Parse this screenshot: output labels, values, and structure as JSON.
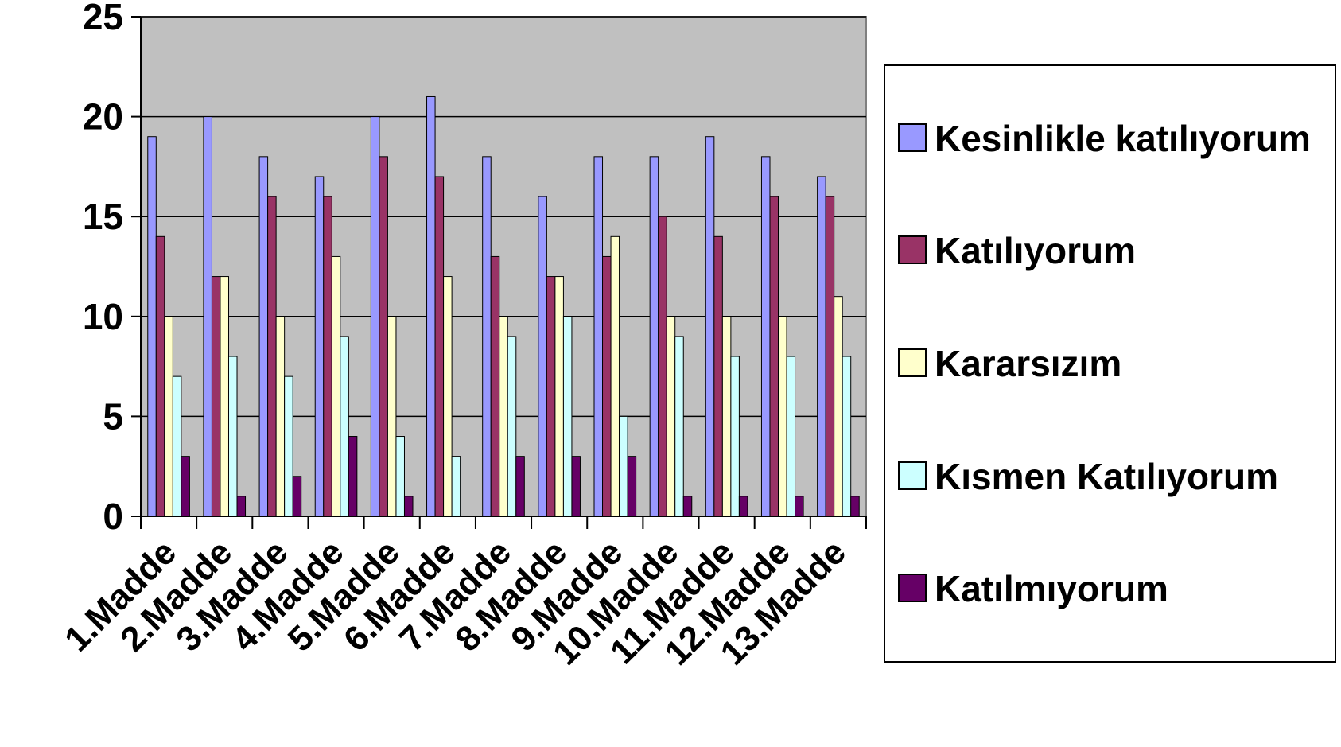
{
  "chart_data": {
    "type": "bar",
    "categories": [
      "1.Madde",
      "2.Madde",
      "3.Madde",
      "4.Madde",
      "5.Madde",
      "6.Madde",
      "7.Madde",
      "8.Madde",
      "9.Madde",
      "10.Madde",
      "11.Madde",
      "12.Madde",
      "13.Madde"
    ],
    "series": [
      {
        "name": "Kesinlikle katılıyorum",
        "color": "#9999ff",
        "values": [
          19,
          20,
          18,
          17,
          20,
          21,
          18,
          16,
          18,
          18,
          19,
          18,
          17
        ]
      },
      {
        "name": "Katılıyorum",
        "color": "#993366",
        "values": [
          14,
          12,
          16,
          16,
          18,
          17,
          13,
          12,
          13,
          15,
          14,
          16,
          16
        ]
      },
      {
        "name": "Kararsızım",
        "color": "#ffffcc",
        "values": [
          10,
          12,
          10,
          13,
          10,
          12,
          10,
          12,
          14,
          10,
          10,
          10,
          11
        ]
      },
      {
        "name": "Kısmen Katılıyorum",
        "color": "#ccffff",
        "values": [
          7,
          8,
          7,
          9,
          4,
          3,
          9,
          10,
          5,
          9,
          8,
          8,
          8
        ]
      },
      {
        "name": "Katılmıyorum",
        "color": "#660066",
        "values": [
          3,
          1,
          2,
          4,
          1,
          0,
          3,
          3,
          3,
          1,
          1,
          1,
          1
        ]
      }
    ],
    "ylim": [
      0,
      25
    ],
    "yticks": [
      0,
      5,
      10,
      15,
      20,
      25
    ],
    "grid": true,
    "plot_background": "#c0c0c0",
    "legend": "right"
  }
}
